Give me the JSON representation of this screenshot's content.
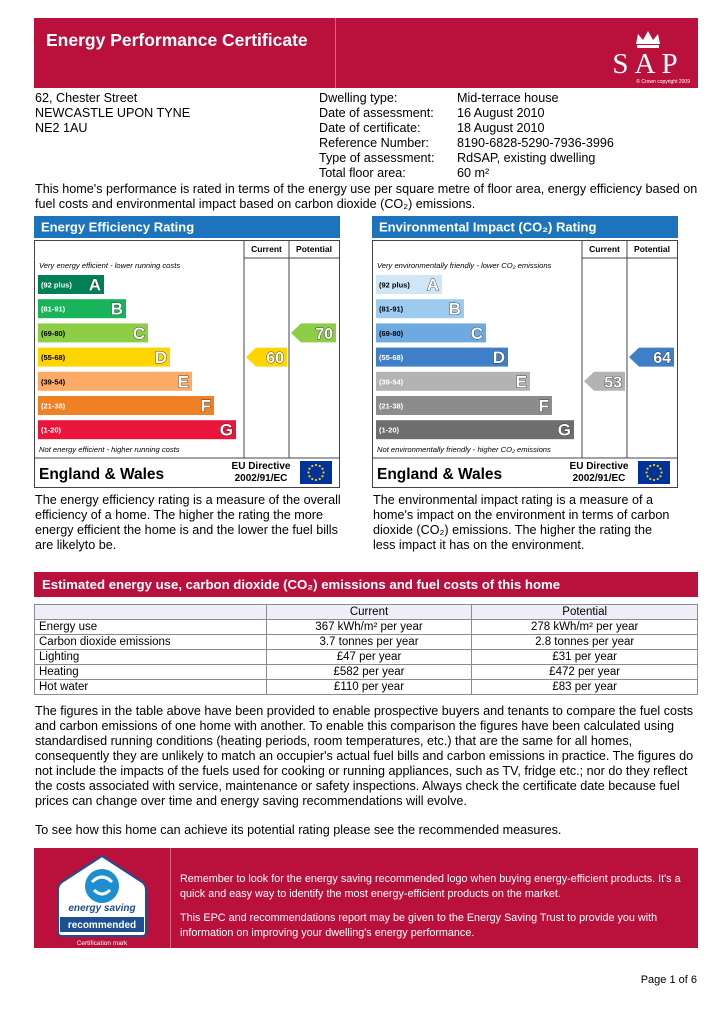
{
  "header": {
    "title": "Energy Performance Certificate",
    "logo": "SAP",
    "copyright": "© Crown copyright 2009"
  },
  "address": [
    "62, Chester Street",
    "NEWCASTLE UPON TYNE",
    "NE2 1AU"
  ],
  "details": [
    {
      "label": "Dwelling type:",
      "value": "Mid-terrace house"
    },
    {
      "label": "Date of assessment:",
      "value": "16 August 2010"
    },
    {
      "label": "Date of certificate:",
      "value": "18 August 2010"
    },
    {
      "label": "Reference Number:",
      "value": "8190-6828-5290-7936-3996"
    },
    {
      "label": "Type of assessment:",
      "value": "RdSAP, existing dwelling"
    },
    {
      "label": "Total floor area:",
      "value": "60 m²"
    }
  ],
  "intro": "This home's performance is rated in terms of the energy use per square metre of floor area, energy efficiency based on fuel costs and environmental impact based on carbon dioxide (CO₂) emissions.",
  "ratings": [
    {
      "title": "Energy Efficiency Rating",
      "col_current": "Current",
      "col_potential": "Potential",
      "top_note": "Very energy efficient - lower running costs",
      "bottom_note": "Not energy efficient - higher running costs",
      "bands": [
        {
          "range": "(92 plus)",
          "letter": "A"
        },
        {
          "range": "(81-91)",
          "letter": "B"
        },
        {
          "range": "(69-80)",
          "letter": "C"
        },
        {
          "range": "(55-68)",
          "letter": "D"
        },
        {
          "range": "(39-54)",
          "letter": "E"
        },
        {
          "range": "(21-38)",
          "letter": "F"
        },
        {
          "range": "(1-20)",
          "letter": "G"
        }
      ],
      "current": 60,
      "potential": 70,
      "region": "England & Wales",
      "directive": [
        "EU Directive",
        "2002/91/EC"
      ],
      "description": "The energy efficiency rating is a measure of the overall efficiency of a home. The higher the rating the more energy efficient the home is and the lower the fuel bills are likelyto be."
    },
    {
      "title": "Environmental Impact (CO₂) Rating",
      "col_current": "Current",
      "col_potential": "Potential",
      "top_note": "Very environmentally friendly - lower CO₂ emissions",
      "bottom_note": "Not environmentally friendly - higher CO₂ emissions",
      "bands": [
        {
          "range": "(92 plus)",
          "letter": "A"
        },
        {
          "range": "(81-91)",
          "letter": "B"
        },
        {
          "range": "(69-80)",
          "letter": "C"
        },
        {
          "range": "(55-68)",
          "letter": "D"
        },
        {
          "range": "(39-54)",
          "letter": "E"
        },
        {
          "range": "(21-38)",
          "letter": "F"
        },
        {
          "range": "(1-20)",
          "letter": "G"
        }
      ],
      "current": 53,
      "potential": 64,
      "region": "England & Wales",
      "directive": [
        "EU Directive",
        "2002/91/EC"
      ],
      "description": "The environmental impact rating is a measure of a home's impact on the environment in terms of carbon dioxide (CO₂) emissions. The higher the rating the less impact it has on the environment."
    }
  ],
  "energy_table": {
    "title": "Estimated energy use, carbon dioxide (CO₂) emissions and fuel costs of this home",
    "headers": {
      "current": "Current",
      "potential": "Potential"
    },
    "rows": [
      [
        "Energy use",
        "367 kWh/m² per year",
        "278 kWh/m² per year"
      ],
      [
        "Carbon dioxide emissions",
        "3.7 tonnes per year",
        "2.8 tonnes per year"
      ],
      [
        "Lighting",
        "£47 per year",
        "£31 per year"
      ],
      [
        "Heating",
        "£582 per year",
        "£472 per year"
      ],
      [
        "Hot water",
        "£110 per year",
        "£83 per year"
      ]
    ]
  },
  "paragraphs": [
    "The figures in the table above have been provided to enable prospective buyers and tenants to compare the fuel costs and carbon emissions of one home with another. To enable this comparison the figures have been calculated using standardised running conditions (heating periods, room temperatures, etc.) that are the same for all homes, consequently they are unlikely to match an occupier's actual fuel bills and carbon emissions in practice. The figures do not include the impacts of the fuels used for cooking or running appliances, such as TV, fridge etc.; nor do they reflect the costs associated with service, maintenance or safety inspections. Always check the certificate date because fuel prices can change over time and energy saving recommendations will evolve.",
    "To see how this home can achieve its potential rating please see the recommended measures."
  ],
  "footer": {
    "logo_top": "energy saving",
    "logo_banner": "recommended",
    "logo_caption": "Certification mark",
    "texts": [
      "Remember to look for the energy saving recommended logo when buying energy-efficient products. It's a quick and easy way to identify the most energy-efficient products on the market.",
      "This EPC and recommendations report may be given to the Energy Saving Trust to provide you with information on improving your dwelling's energy performance."
    ]
  },
  "page": "Page 1 of 6"
}
